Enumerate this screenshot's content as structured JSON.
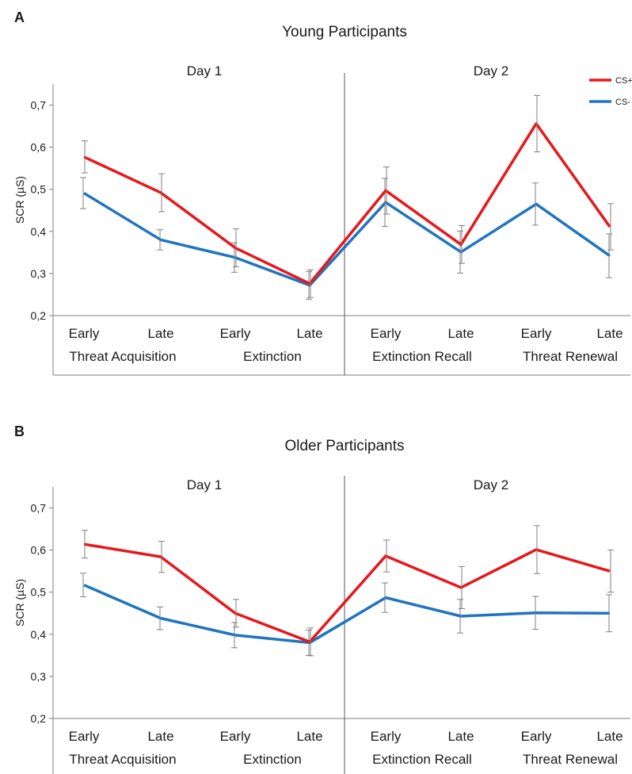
{
  "colors": {
    "cs_plus": "#e8171b",
    "cs_minus": "#1f74c1",
    "axis": "#7f7f7f",
    "error": "#7f7f7f"
  },
  "chart_data": [
    {
      "type": "line",
      "panel_letter": "A",
      "title": "Young Participants",
      "ylabel": "SCR (µS)",
      "ylim": [
        0.2,
        0.75
      ],
      "yticks": [
        "0,2",
        "0,3",
        "0,4",
        "0,5",
        "0,6",
        "0,7"
      ],
      "day_labels": [
        "Day 1",
        "Day 2"
      ],
      "categories": [
        "Early",
        "Late",
        "Early",
        "Late",
        "Early",
        "Late",
        "Early",
        "Late"
      ],
      "phases": [
        "Threat Acquisition",
        "Extinction",
        "Extinction Recall",
        "Threat Renewal"
      ],
      "legend_position": "top-right",
      "series": [
        {
          "name": "CS+",
          "color": "#e8171b",
          "values": [
            0.577,
            0.492,
            0.361,
            0.276,
            0.497,
            0.369,
            0.656,
            0.411
          ],
          "errors": [
            0.038,
            0.045,
            0.045,
            0.033,
            0.056,
            0.045,
            0.067,
            0.055
          ]
        },
        {
          "name": "CS-",
          "color": "#1f74c1",
          "values": [
            0.491,
            0.38,
            0.338,
            0.272,
            0.469,
            0.351,
            0.465,
            0.342
          ],
          "errors": [
            0.037,
            0.024,
            0.035,
            0.033,
            0.057,
            0.05,
            0.05,
            0.052
          ]
        }
      ]
    },
    {
      "type": "line",
      "panel_letter": "B",
      "title": "Older Participants",
      "ylabel": "SCR (µS)",
      "ylim": [
        0.2,
        0.75
      ],
      "yticks": [
        "0,2",
        "0,3",
        "0,4",
        "0,5",
        "0,6",
        "0,7"
      ],
      "day_labels": [
        "Day 1",
        "Day 2"
      ],
      "categories": [
        "Early",
        "Late",
        "Early",
        "Late",
        "Early",
        "Late",
        "Early",
        "Late"
      ],
      "phases": [
        "Threat Acquisition",
        "Extinction",
        "Extinction Recall",
        "Threat Renewal"
      ],
      "series": [
        {
          "name": "CS+",
          "color": "#e8171b",
          "values": [
            0.614,
            0.584,
            0.45,
            0.382,
            0.586,
            0.511,
            0.601,
            0.55
          ],
          "errors": [
            0.033,
            0.037,
            0.033,
            0.033,
            0.038,
            0.05,
            0.057,
            0.05
          ]
        },
        {
          "name": "CS-",
          "color": "#1f74c1",
          "values": [
            0.517,
            0.438,
            0.398,
            0.38,
            0.487,
            0.443,
            0.451,
            0.45
          ],
          "errors": [
            0.028,
            0.027,
            0.03,
            0.03,
            0.035,
            0.04,
            0.039,
            0.044
          ]
        }
      ]
    }
  ]
}
